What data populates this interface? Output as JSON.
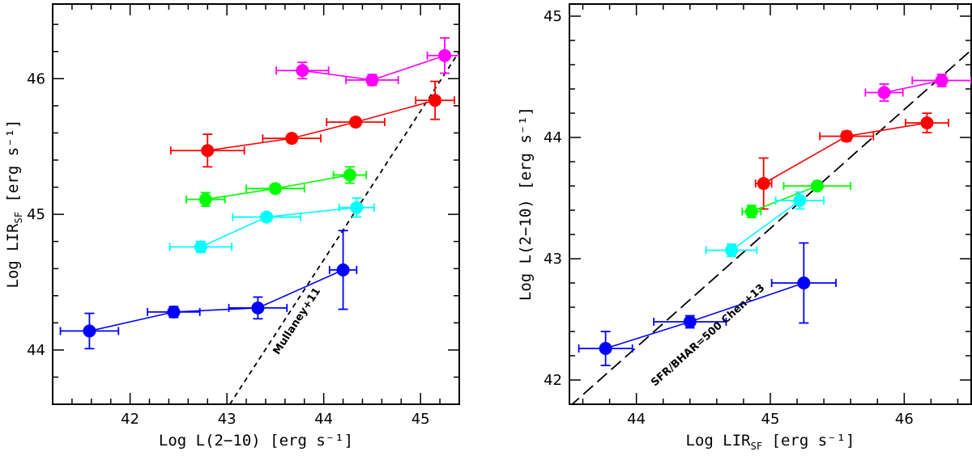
{
  "chart_data": [
    {
      "type": "scatter",
      "xlabel": "Log L(2−10) [erg s⁻¹]",
      "ylabel": "Log LIR",
      "ylabel_sub": "SF",
      "ylabel_suffix": " [erg s⁻¹]",
      "xlim": [
        41.2,
        45.4
      ],
      "ylim": [
        43.6,
        46.55
      ],
      "xticks_major": [
        42,
        43,
        44,
        45
      ],
      "yticks_major": [
        44,
        45,
        46
      ],
      "annotation": {
        "text": "Mullaney+11",
        "x": 43.75,
        "y": 44.2
      },
      "reference_line": {
        "name": "Mullaney+11",
        "style": "dashed",
        "points": [
          [
            43.03,
            43.6
          ],
          [
            45.4,
            46.2
          ]
        ]
      },
      "series": [
        {
          "color": "#ff00ff",
          "points": [
            {
              "x": 43.78,
              "y": 46.06,
              "xerr": 0.27,
              "yerr": 0.06
            },
            {
              "x": 44.5,
              "y": 45.99,
              "xerr": 0.27,
              "yerr": 0.04
            },
            {
              "x": 45.25,
              "y": 46.17,
              "xerr": 0.18,
              "yerr": 0.13
            }
          ]
        },
        {
          "color": "#ff0000",
          "points": [
            {
              "x": 42.8,
              "y": 45.47,
              "xerr": 0.38,
              "yerr": 0.12
            },
            {
              "x": 43.67,
              "y": 45.56,
              "xerr": 0.3,
              "yerr": 0.03
            },
            {
              "x": 44.33,
              "y": 45.68,
              "xerr": 0.3,
              "yerr": 0.03
            },
            {
              "x": 45.15,
              "y": 45.84,
              "xerr": 0.2,
              "yerr": 0.14
            }
          ]
        },
        {
          "color": "#00ff00",
          "points": [
            {
              "x": 42.78,
              "y": 45.11,
              "xerr": 0.2,
              "yerr": 0.05
            },
            {
              "x": 43.5,
              "y": 45.19,
              "xerr": 0.3,
              "yerr": 0.03
            },
            {
              "x": 44.27,
              "y": 45.29,
              "xerr": 0.17,
              "yerr": 0.06
            }
          ]
        },
        {
          "color": "#00ffff",
          "points": [
            {
              "x": 42.73,
              "y": 44.76,
              "xerr": 0.32,
              "yerr": 0.04
            },
            {
              "x": 43.41,
              "y": 44.98,
              "xerr": 0.35,
              "yerr": 0.03
            },
            {
              "x": 44.34,
              "y": 45.05,
              "xerr": 0.18,
              "yerr": 0.07
            }
          ]
        },
        {
          "color": "#0000ff",
          "points": [
            {
              "x": 41.58,
              "y": 44.14,
              "xerr": 0.3,
              "yerr": 0.13
            },
            {
              "x": 42.45,
              "y": 44.28,
              "xerr": 0.27,
              "yerr": 0.04
            },
            {
              "x": 43.32,
              "y": 44.31,
              "xerr": 0.3,
              "yerr": 0.08
            },
            {
              "x": 44.2,
              "y": 44.59,
              "xerr": 0.14,
              "yerr": 0.29
            }
          ]
        }
      ]
    },
    {
      "type": "scatter",
      "xlabel": "Log LIR",
      "xlabel_sub": "SF",
      "xlabel_suffix": " [erg s⁻¹]",
      "ylabel": "Log L(2−10) [erg s⁻¹]",
      "xlim": [
        43.5,
        46.5
      ],
      "ylim": [
        41.8,
        45.1
      ],
      "xticks_major": [
        44,
        45,
        46
      ],
      "yticks_major": [
        42,
        43,
        44,
        45
      ],
      "annotation": {
        "text": "SFR/BHAR=500 Chen+13",
        "x": 44.55,
        "y": 42.35
      },
      "reference_line": {
        "name": "SFR/BHAR=500 Chen+13",
        "style": "long-dashed",
        "points": [
          [
            43.5,
            41.78
          ],
          [
            46.5,
            44.72
          ]
        ]
      },
      "series": [
        {
          "color": "#ff00ff",
          "points": [
            {
              "x": 45.85,
              "y": 44.37,
              "xerr": 0.14,
              "yerr": 0.07
            },
            {
              "x": 46.28,
              "y": 44.47,
              "xerr": 0.22,
              "yerr": 0.05
            }
          ]
        },
        {
          "color": "#ff0000",
          "points": [
            {
              "x": 44.95,
              "y": 43.62,
              "xerr": 0.06,
              "yerr": 0.21
            },
            {
              "x": 45.57,
              "y": 44.01,
              "xerr": 0.2,
              "yerr": 0.04
            },
            {
              "x": 46.17,
              "y": 44.12,
              "xerr": 0.16,
              "yerr": 0.08
            }
          ]
        },
        {
          "color": "#00ff00",
          "points": [
            {
              "x": 44.86,
              "y": 43.39,
              "xerr": 0.07,
              "yerr": 0.05
            },
            {
              "x": 45.35,
              "y": 43.6,
              "xerr": 0.25,
              "yerr": 0.03
            }
          ]
        },
        {
          "color": "#00ffff",
          "points": [
            {
              "x": 44.71,
              "y": 43.07,
              "xerr": 0.19,
              "yerr": 0.05
            },
            {
              "x": 45.22,
              "y": 43.48,
              "xerr": 0.18,
              "yerr": 0.07
            }
          ]
        },
        {
          "color": "#0000ff",
          "points": [
            {
              "x": 43.77,
              "y": 42.26,
              "xerr": 0.2,
              "yerr": 0.14
            },
            {
              "x": 44.4,
              "y": 42.48,
              "xerr": 0.27,
              "yerr": 0.05
            },
            {
              "x": 45.25,
              "y": 42.8,
              "xerr": 0.24,
              "yerr": 0.33
            }
          ]
        }
      ]
    }
  ]
}
